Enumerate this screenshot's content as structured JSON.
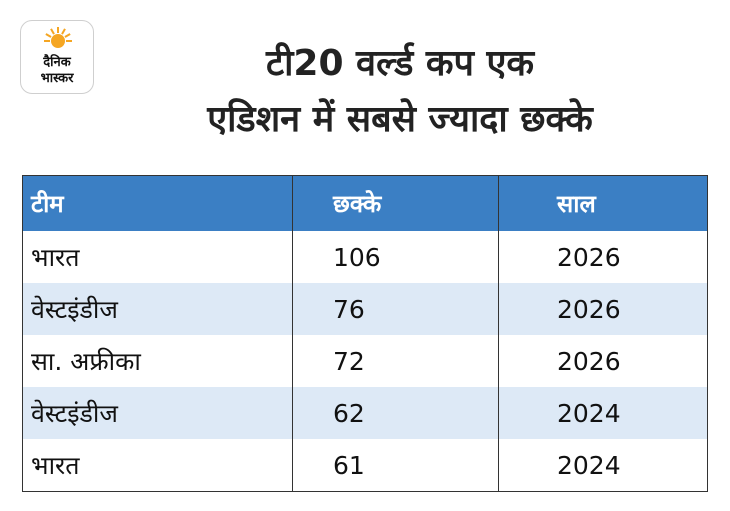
{
  "brand": {
    "line1": "दैनिक",
    "line2": "भास्कर",
    "sun_color": "#f5a623"
  },
  "title": {
    "line1": "टी20 वर्ल्ड कप एक",
    "line2": "एडिशन में सबसे ज्यादा छक्के"
  },
  "table": {
    "header_color": "#3b7fc4",
    "alt_row_color": "#dde9f6",
    "columns": [
      "टीम",
      "छक्के",
      "साल"
    ],
    "rows": [
      [
        "भारत",
        "106",
        "2026"
      ],
      [
        "वेस्टइंडीज",
        "76",
        "2026"
      ],
      [
        "सा. अफ्रीका",
        "72",
        "2026"
      ],
      [
        "वेस्टइंडीज",
        "62",
        "2024"
      ],
      [
        "भारत",
        "61",
        "2024"
      ]
    ]
  }
}
